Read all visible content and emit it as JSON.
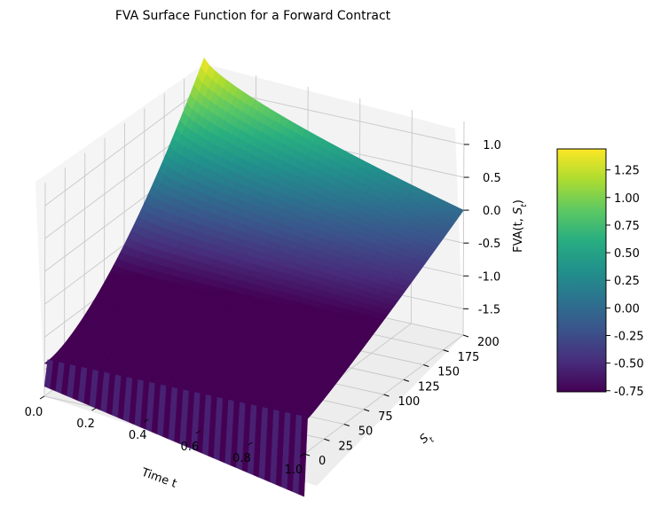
{
  "chart_data": {
    "type": "surface3d",
    "title": "FVA Surface Function for a Forward Contract",
    "xlabel": "Time t",
    "ylabel": "S_t",
    "zlabel": "FVA(t, S_t)",
    "colormap": "viridis",
    "x_ticks": [
      "0.0",
      "0.2",
      "0.4",
      "0.6",
      "0.8",
      "1.0"
    ],
    "y_ticks": [
      "0",
      "25",
      "50",
      "75",
      "100",
      "125",
      "150",
      "175",
      "200"
    ],
    "z_ticks": [
      "-1.5",
      "-1.0",
      "-0.5",
      "0.0",
      "0.5",
      "1.0"
    ],
    "colorbar_ticks": [
      "-0.75",
      "-0.50",
      "-0.25",
      "0.00",
      "0.25",
      "0.50",
      "0.75",
      "1.00",
      "1.25"
    ],
    "xlim": [
      0,
      1
    ],
    "ylim": [
      0,
      200
    ],
    "zlim": [
      -1.9,
      1.35
    ],
    "colorbar_range": [
      -0.76,
      1.44
    ],
    "surface_corners": [
      {
        "t": 0.0,
        "S": 200,
        "fva": 1.44
      },
      {
        "t": 1.0,
        "S": 200,
        "fva": 0.0
      },
      {
        "t": 0.0,
        "S": 0,
        "fva": -1.4
      },
      {
        "t": 1.0,
        "S": 0,
        "fva": -1.4
      }
    ],
    "wall_value_at_S0": -0.76
  }
}
